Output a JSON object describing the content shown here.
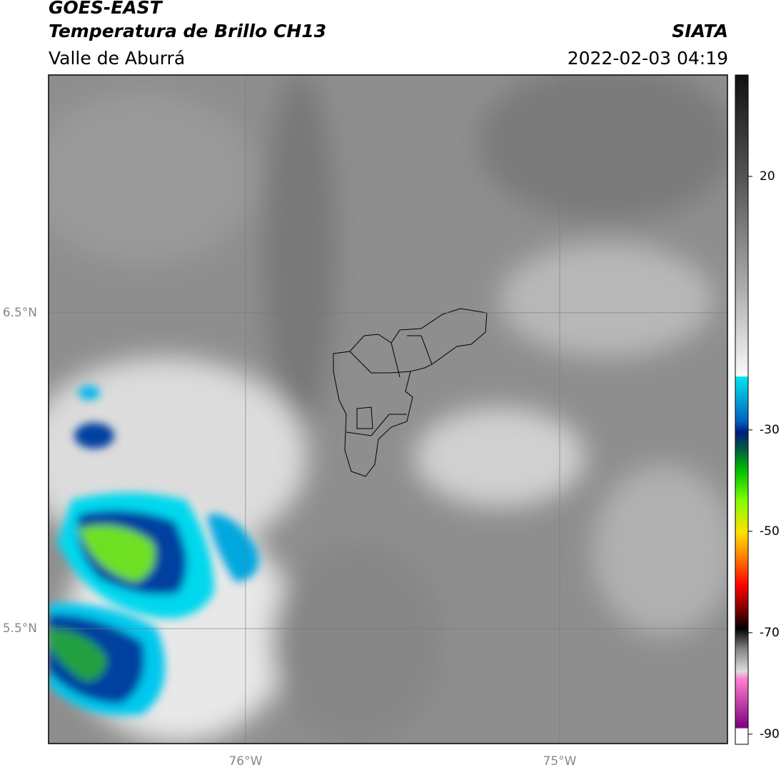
{
  "header": {
    "title": "GOES-EAST",
    "subtitle": "Temperatura de Brillo CH13",
    "region": "Valle de Aburrá",
    "source": "SIATA",
    "datetime": "2022-02-03 04:19"
  },
  "map": {
    "xlim": [
      -76.627,
      -74.466
    ],
    "ylim": [
      5.136,
      7.253
    ],
    "xticks": [
      {
        "value": -76,
        "label": "76°W"
      },
      {
        "value": -75,
        "label": "75°W"
      }
    ],
    "yticks": [
      {
        "value": 6.5,
        "label": "6.5°N"
      },
      {
        "value": 5.5,
        "label": "5.5°N"
      }
    ]
  },
  "colorbar": {
    "lim": [
      -92,
      40
    ],
    "ticks": [
      20,
      -30,
      -50,
      -70,
      -90
    ]
  }
}
